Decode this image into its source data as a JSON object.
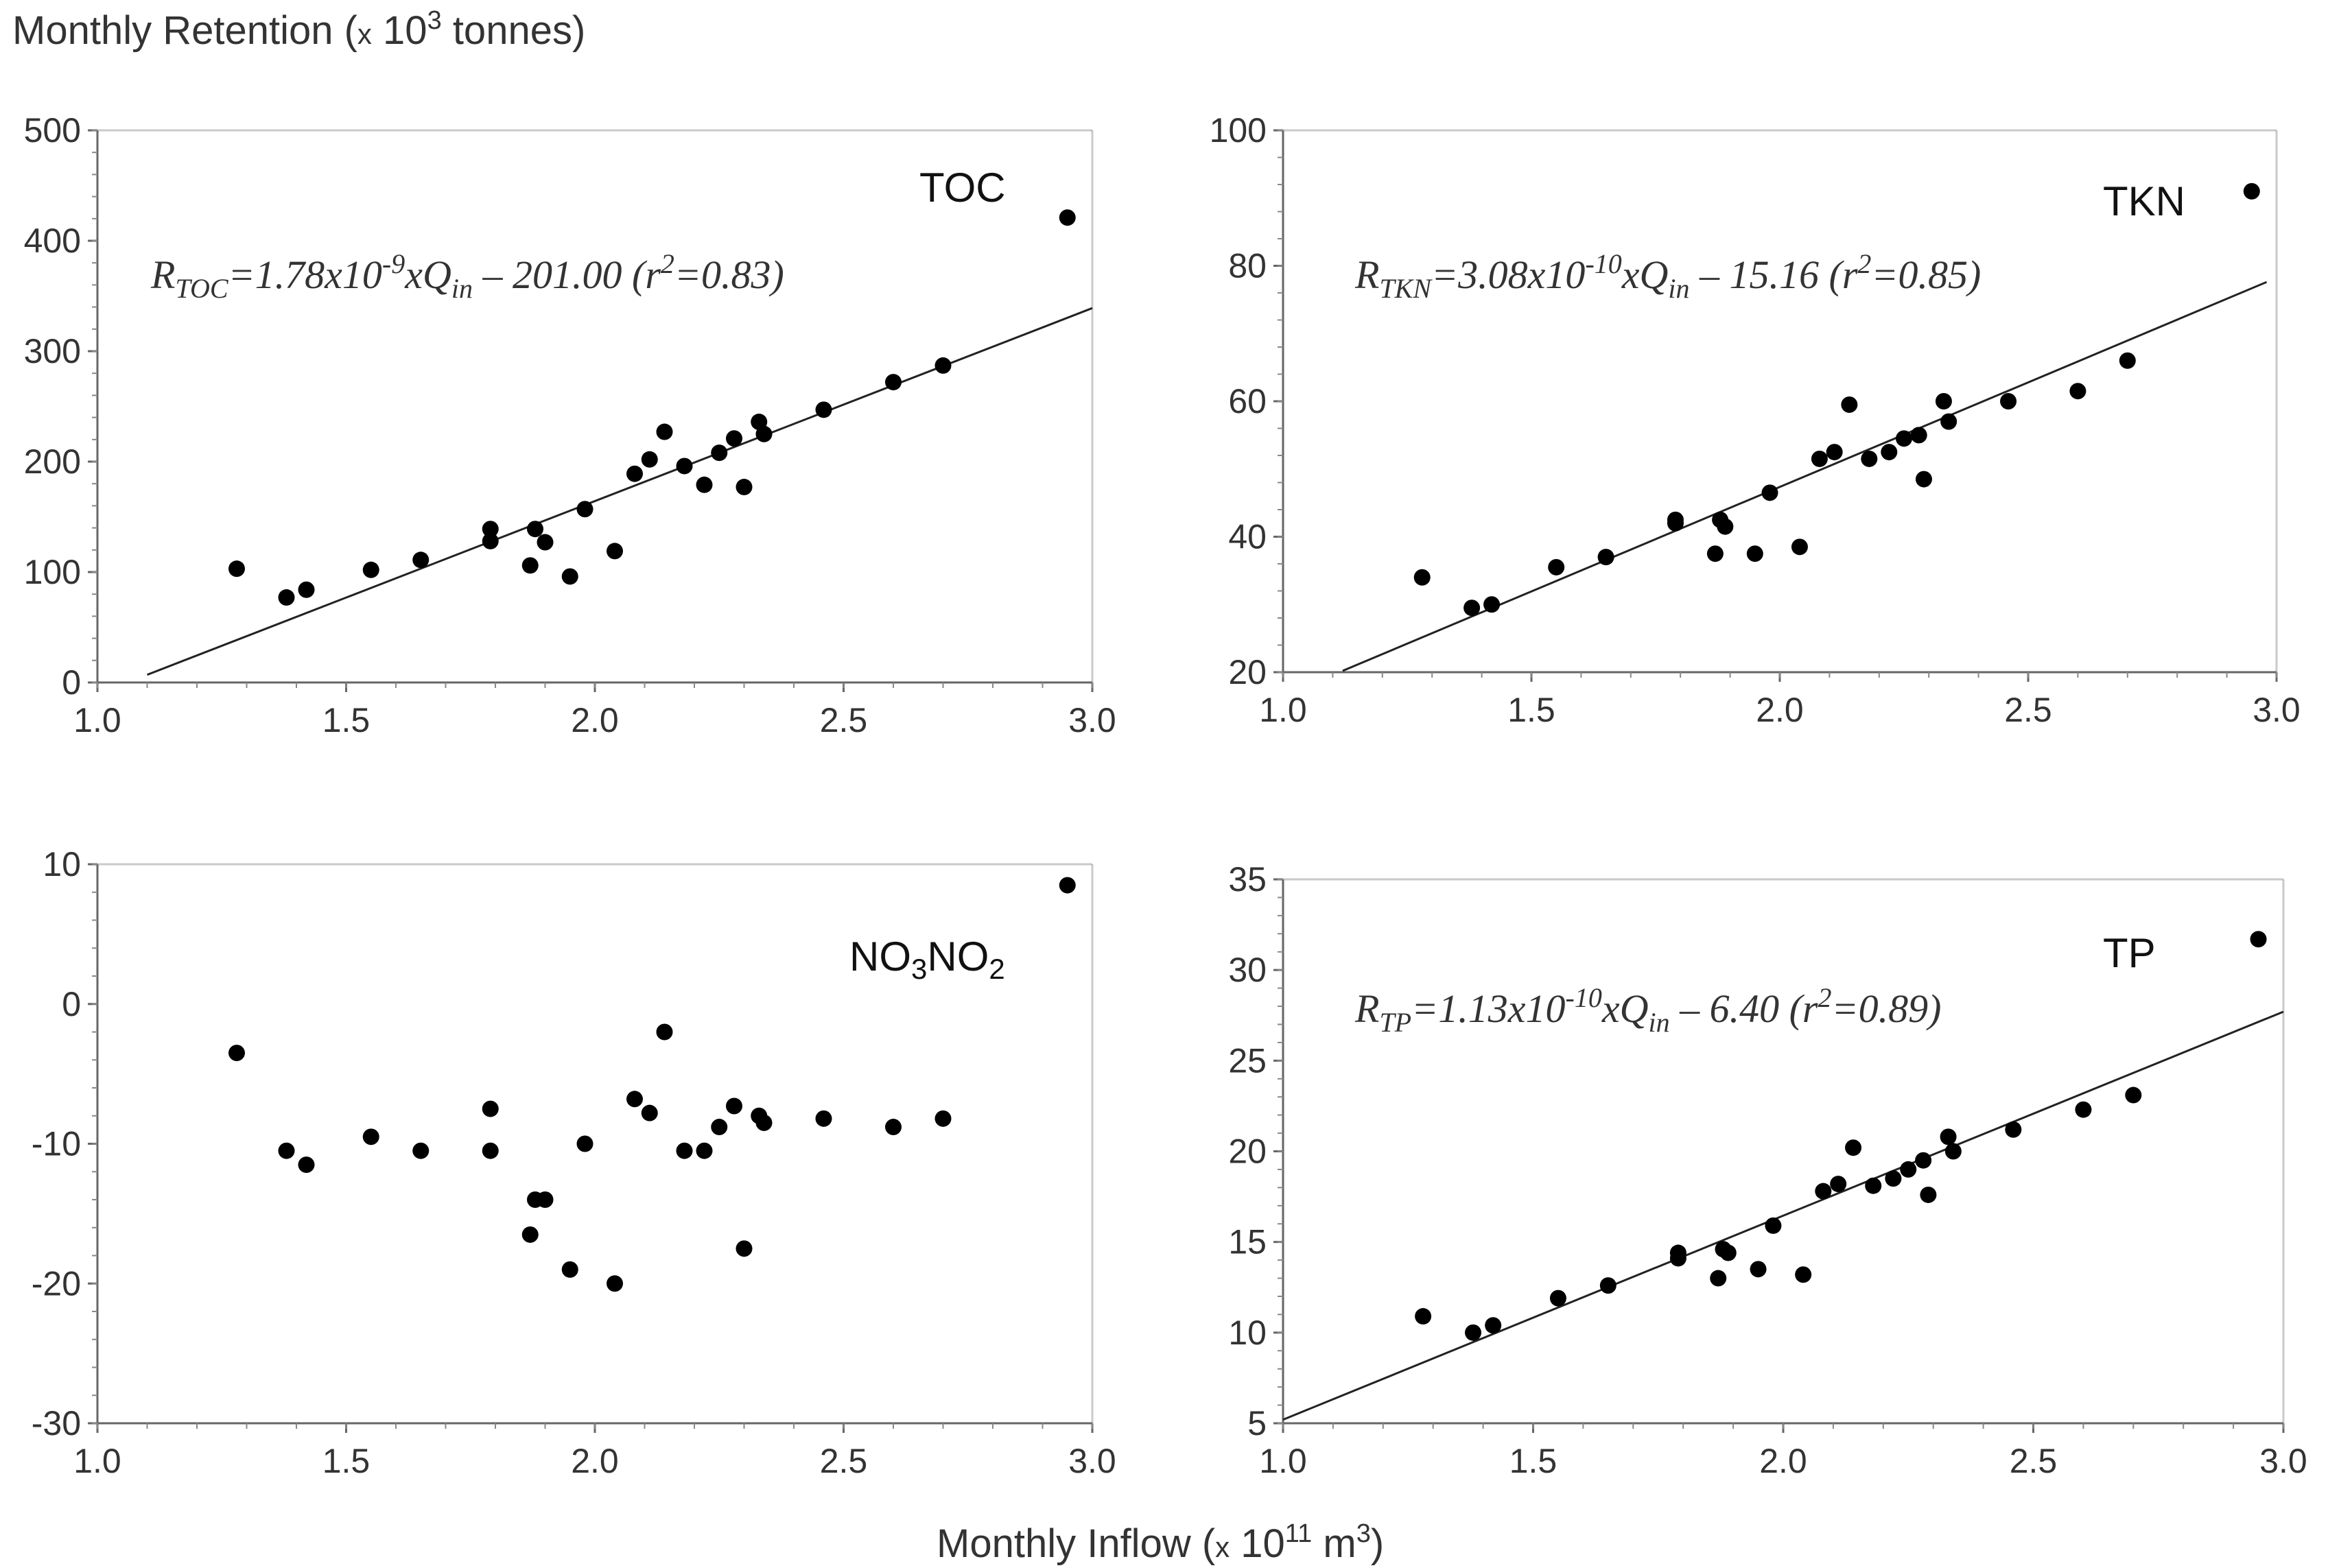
{
  "figure": {
    "y_label": {
      "main": "Monthly Retention (",
      "x": "x",
      "base": " 10",
      "sup": "3",
      "unit": " tonnes)"
    },
    "x_label": {
      "main": "Monthly Inflow (",
      "x": "x",
      "base": " 10",
      "sup": "11",
      "unit": " m",
      "unit_sup": "3",
      "close": ")"
    }
  },
  "chart_data": [
    {
      "id": "toc",
      "type": "scatter",
      "title": "TOC",
      "equation": {
        "r": "R",
        "r_sub": "TOC",
        "body": "=1.78x10",
        "exp": "-9",
        "xq": "xQ",
        "q_sub": "in",
        "tail": " – 201.00 (r",
        "r2": "2",
        "end": "=0.83)"
      },
      "xlim": [
        1.0,
        3.0
      ],
      "ylim": [
        0,
        500
      ],
      "xticks": [
        "1.0",
        "1.5",
        "2.0",
        "2.5",
        "3.0"
      ],
      "yticks": [
        "0",
        "100",
        "200",
        "300",
        "400",
        "500"
      ],
      "x": [
        1.28,
        1.38,
        1.42,
        1.55,
        1.65,
        1.79,
        1.79,
        1.87,
        1.88,
        1.9,
        1.95,
        1.98,
        2.04,
        2.08,
        2.11,
        2.14,
        2.18,
        2.22,
        2.25,
        2.28,
        2.3,
        2.33,
        2.34,
        2.46,
        2.6,
        2.7,
        2.95
      ],
      "y": [
        103,
        77,
        84,
        102,
        111,
        139,
        128,
        106,
        139,
        127,
        96,
        157,
        119,
        189,
        202,
        227,
        196,
        179,
        208,
        221,
        177,
        236,
        225,
        247,
        272,
        287,
        421
      ],
      "fit": {
        "x": [
          1.1,
          3.0
        ],
        "y": [
          7,
          339
        ]
      }
    },
    {
      "id": "tkn",
      "type": "scatter",
      "title": "TKN",
      "equation": {
        "r": "R",
        "r_sub": "TKN",
        "body": "=3.08x10",
        "exp": "-10",
        "xq": "xQ",
        "q_sub": "in",
        "tail": " – 15.16 (r",
        "r2": "2",
        "end": "=0.85)"
      },
      "xlim": [
        1.0,
        3.0
      ],
      "ylim": [
        20,
        100
      ],
      "xticks": [
        "1.0",
        "1.5",
        "2.0",
        "2.5",
        "3.0"
      ],
      "yticks": [
        "20",
        "40",
        "60",
        "80",
        "100"
      ],
      "x": [
        1.28,
        1.38,
        1.42,
        1.55,
        1.65,
        1.79,
        1.79,
        1.87,
        1.88,
        1.89,
        1.95,
        1.98,
        2.04,
        2.08,
        2.11,
        2.14,
        2.18,
        2.22,
        2.25,
        2.28,
        2.29,
        2.33,
        2.34,
        2.46,
        2.6,
        2.7,
        2.95
      ],
      "y": [
        34,
        29.5,
        30,
        35.5,
        37,
        42,
        42.5,
        37.5,
        42.5,
        41.5,
        37.5,
        46.5,
        38.5,
        51.5,
        52.5,
        59.5,
        51.5,
        52.5,
        54.5,
        55,
        48.5,
        60,
        57,
        60,
        61.5,
        66,
        91
      ],
      "fit": {
        "x": [
          1.12,
          2.98
        ],
        "y": [
          20.2,
          77.6
        ]
      }
    },
    {
      "id": "no3no2",
      "type": "scatter",
      "title": "NO3NO2",
      "title_parts": {
        "a": "NO",
        "a_sub": "3",
        "b": "NO",
        "b_sub": "2"
      },
      "xlim": [
        1.0,
        3.0
      ],
      "ylim": [
        -30,
        10
      ],
      "xticks": [
        "1.0",
        "1.5",
        "2.0",
        "2.5",
        "3.0"
      ],
      "yticks": [
        "-30",
        "-20",
        "-10",
        "0",
        "10"
      ],
      "x": [
        1.28,
        1.38,
        1.42,
        1.55,
        1.65,
        1.79,
        1.79,
        1.87,
        1.88,
        1.9,
        1.95,
        1.98,
        2.04,
        2.08,
        2.11,
        2.14,
        2.18,
        2.22,
        2.25,
        2.28,
        2.3,
        2.33,
        2.34,
        2.46,
        2.6,
        2.7,
        2.95
      ],
      "y": [
        -3.5,
        -10.5,
        -11.5,
        -9.5,
        -10.5,
        -7.5,
        -10.5,
        -16.5,
        -14,
        -14,
        -19,
        -10,
        -20,
        -6.8,
        -7.8,
        -2,
        -10.5,
        -10.5,
        -8.8,
        -7.3,
        -17.5,
        -8,
        -8.5,
        -8.2,
        -8.8,
        -8.2,
        8.5
      ]
    },
    {
      "id": "tp",
      "type": "scatter",
      "title": "TP",
      "equation": {
        "r": "R",
        "r_sub": "TP",
        "body": "=1.13x10",
        "exp": "-10",
        "xq": "xQ",
        "q_sub": "in",
        "tail": " – 6.40 (r",
        "r2": "2",
        "end": "=0.89)"
      },
      "xlim": [
        1.0,
        3.0
      ],
      "ylim": [
        5,
        35
      ],
      "xticks": [
        "1.0",
        "1.5",
        "2.0",
        "2.5",
        "3.0"
      ],
      "yticks": [
        "5",
        "10",
        "15",
        "20",
        "25",
        "30",
        "35"
      ],
      "x": [
        1.28,
        1.38,
        1.42,
        1.55,
        1.65,
        1.79,
        1.79,
        1.87,
        1.88,
        1.89,
        1.95,
        1.98,
        2.04,
        2.08,
        2.11,
        2.14,
        2.18,
        2.22,
        2.25,
        2.28,
        2.29,
        2.33,
        2.34,
        2.46,
        2.6,
        2.7,
        2.95
      ],
      "y": [
        10.9,
        10,
        10.4,
        11.9,
        12.6,
        14.1,
        14.4,
        13,
        14.6,
        14.4,
        13.5,
        15.9,
        13.2,
        17.8,
        18.2,
        20.2,
        18.1,
        18.5,
        19,
        19.5,
        17.6,
        20.8,
        20,
        21.2,
        22.3,
        23.1,
        31.7
      ],
      "fit": {
        "x": [
          1.0,
          3.0
        ],
        "y": [
          5.2,
          27.7
        ]
      }
    }
  ]
}
